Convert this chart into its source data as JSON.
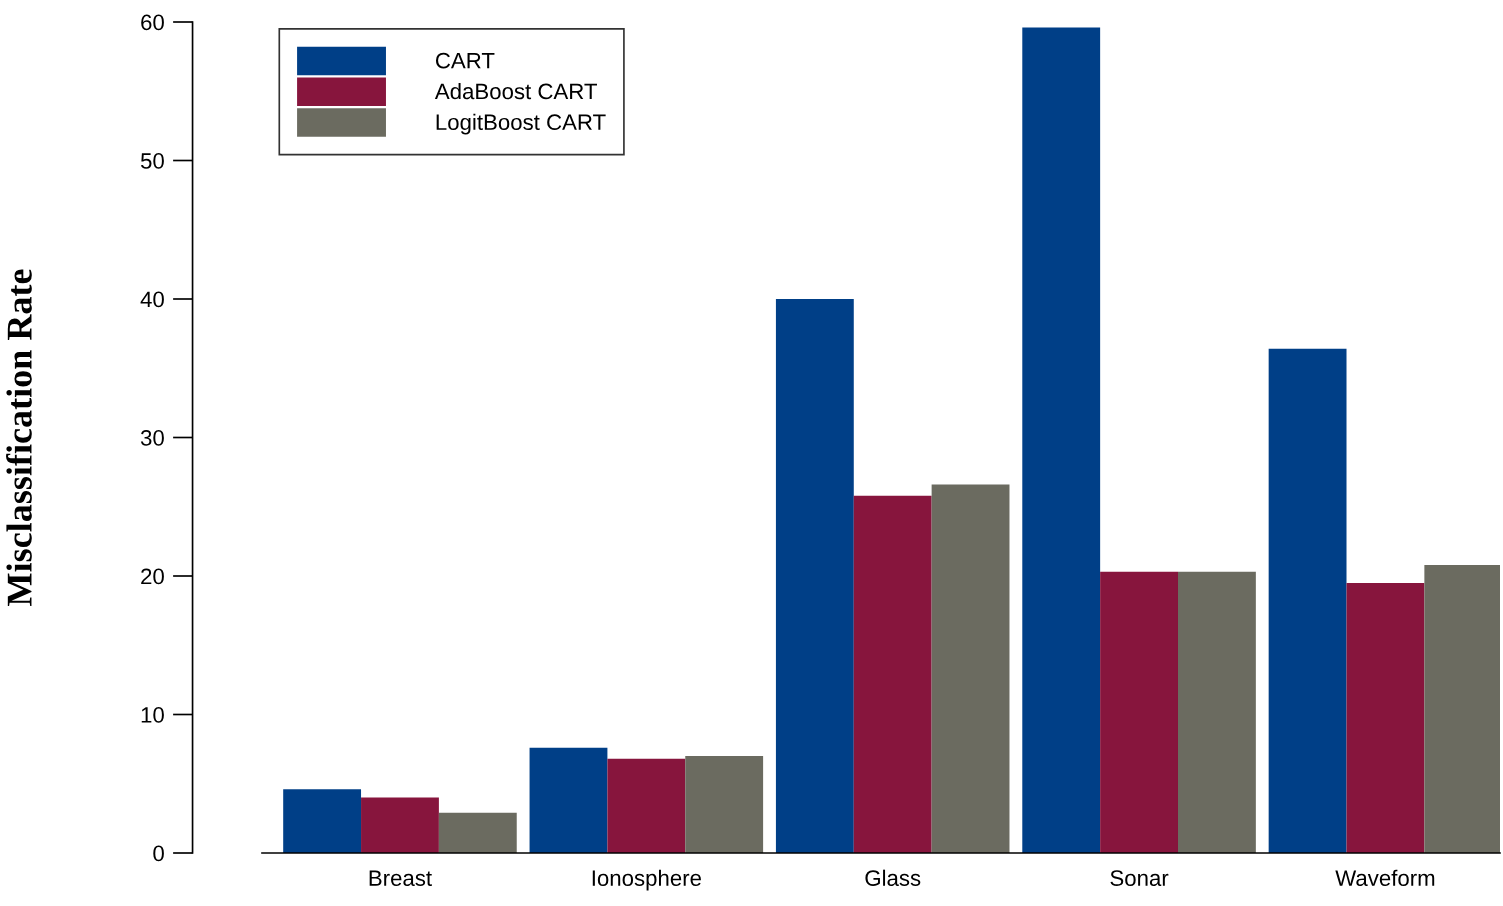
{
  "chart_data": {
    "type": "bar",
    "ylabel": "Misclassification Rate",
    "categories": [
      "Breast",
      "Ionosphere",
      "Glass",
      "Sonar",
      "Waveform"
    ],
    "series": [
      {
        "name": "CART",
        "color": "#003f87",
        "values": [
          4.6,
          7.6,
          40.0,
          59.6,
          36.4
        ]
      },
      {
        "name": "AdaBoost CART",
        "color": "#87153d",
        "values": [
          4.0,
          6.8,
          25.8,
          20.3,
          19.5
        ]
      },
      {
        "name": "LogitBoost CART",
        "color": "#6b6b60",
        "values": [
          2.9,
          7.0,
          26.6,
          20.3,
          20.8
        ]
      }
    ],
    "ylim": [
      0,
      60
    ],
    "yticks": [
      0,
      10,
      20,
      30,
      40,
      50,
      60
    ],
    "grid": false,
    "legend": "top left"
  }
}
